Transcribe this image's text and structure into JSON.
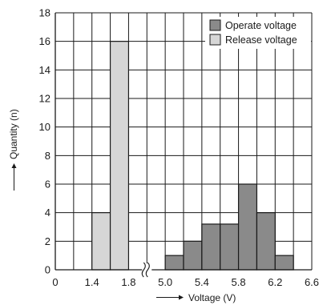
{
  "chart_data": {
    "type": "bar",
    "xlabel": "Voltage (V)",
    "ylabel": "Quantity (n)",
    "ylim": [
      0,
      18
    ],
    "y_ticks": [
      "0",
      "2",
      "4",
      "6",
      "8",
      "10",
      "12",
      "14",
      "16",
      "18"
    ],
    "x_ticks": [
      "0",
      "1.4",
      "1.8",
      "5.0",
      "5.4",
      "5.8",
      "6.2",
      "6.6"
    ],
    "grid": true,
    "legend_position": "top-right",
    "axis_break": "between 1.8 and 5.0",
    "series": [
      {
        "name": "Operate voltage",
        "color": "#8a8a8a",
        "bins": [
          {
            "from": 5.0,
            "to": 5.2,
            "value": 1
          },
          {
            "from": 5.2,
            "to": 5.4,
            "value": 2
          },
          {
            "from": 5.4,
            "to": 5.6,
            "value": 3.2
          },
          {
            "from": 5.6,
            "to": 5.8,
            "value": 3.2
          },
          {
            "from": 5.8,
            "to": 6.0,
            "value": 6
          },
          {
            "from": 6.0,
            "to": 6.2,
            "value": 4
          },
          {
            "from": 6.2,
            "to": 6.4,
            "value": 1
          }
        ]
      },
      {
        "name": "Release voltage",
        "color": "#d6d6d6",
        "bins": [
          {
            "from": 1.4,
            "to": 1.6,
            "value": 4
          },
          {
            "from": 1.6,
            "to": 1.8,
            "value": 16
          }
        ]
      }
    ]
  }
}
